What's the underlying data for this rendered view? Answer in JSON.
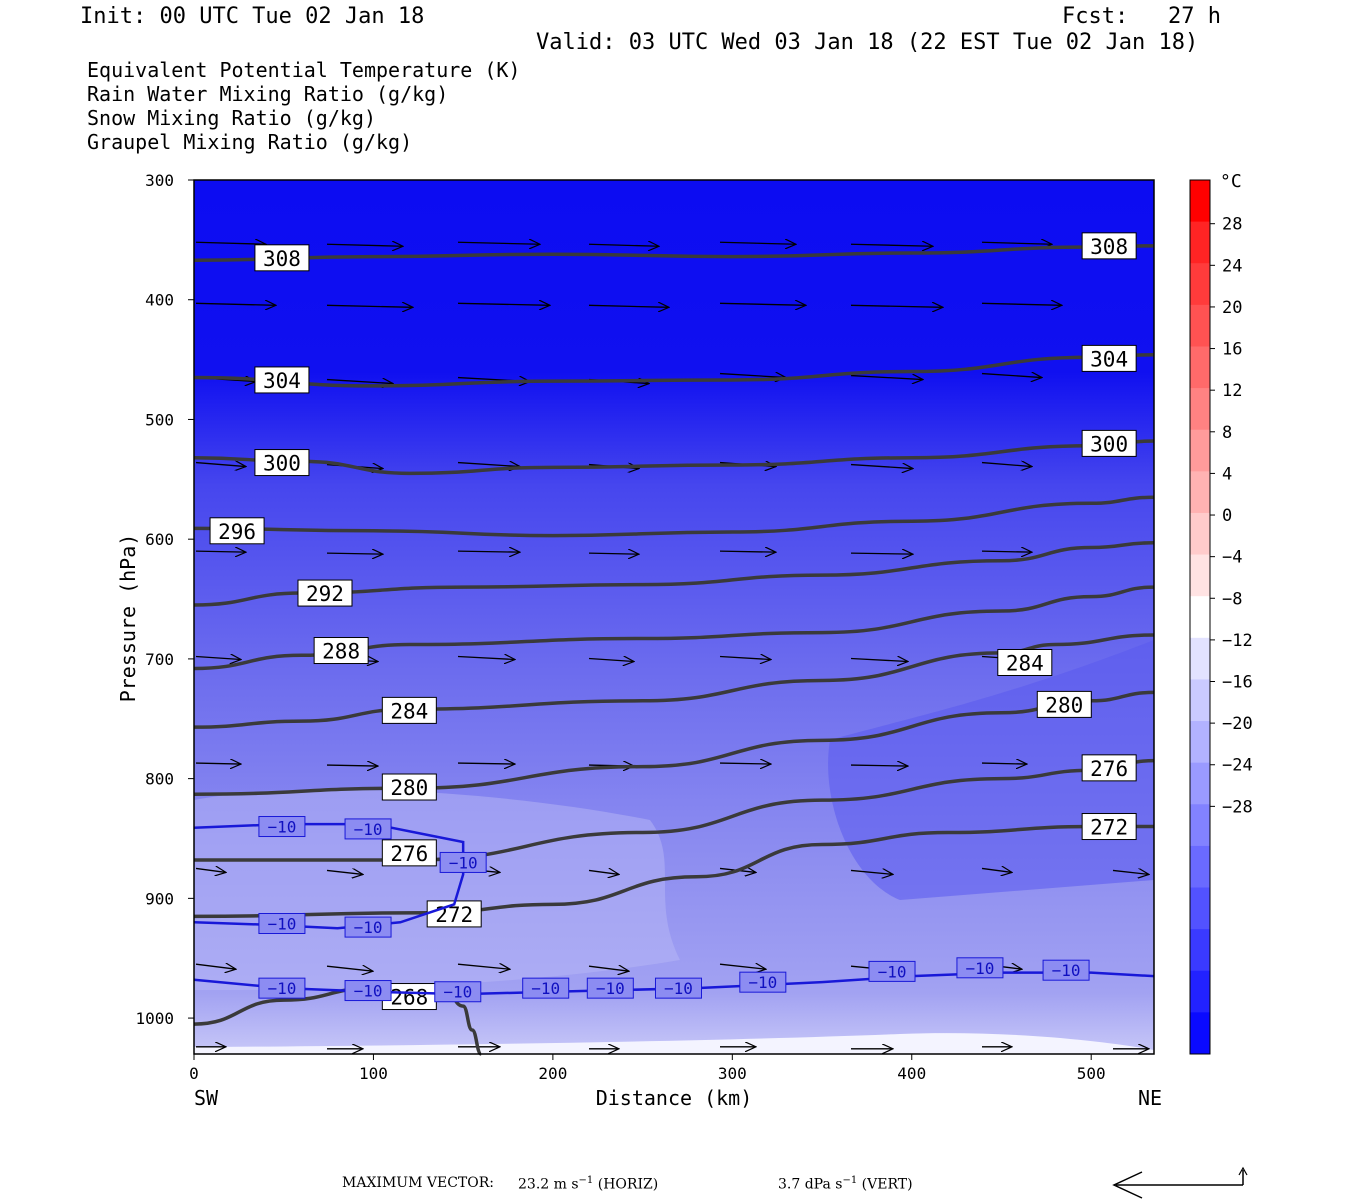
{
  "header": {
    "init": "Init: 00 UTC Tue 02 Jan 18",
    "fcst": "Fcst:   27 h",
    "valid": "Valid: 03 UTC Wed 03 Jan 18 (22 EST Tue 02 Jan 18)"
  },
  "legend": [
    {
      "label": "Equivalent Potential Temperature (K)",
      "color": "#444444"
    },
    {
      "label": "Rain Water Mixing Ratio (g/kg)",
      "color": "#1a7a1a"
    },
    {
      "label": "Snow Mixing Ratio (g/kg)",
      "color": "#f08a4b"
    },
    {
      "label": "Graupel Mixing Ratio (g/kg)",
      "color": "#e87ae8"
    }
  ],
  "chart_data": {
    "type": "cross-section",
    "xlabel": "Distance (km)",
    "ylabel": "Pressure (hPa)",
    "xlim": [
      0,
      535
    ],
    "ylim": [
      1030,
      300
    ],
    "x_ticks": [
      "0",
      "100",
      "200",
      "300",
      "400",
      "500"
    ],
    "y_ticks": [
      "300",
      "400",
      "500",
      "600",
      "700",
      "800",
      "900",
      "1000"
    ],
    "x_end_labels": {
      "left": "SW",
      "right": "NE"
    },
    "colorbar": {
      "unit": "°C",
      "ticks": [
        "28",
        "24",
        "20",
        "16",
        "12",
        "8",
        "4",
        "0",
        "−4",
        "−8",
        "−12",
        "−16",
        "−20",
        "−24",
        "−28"
      ],
      "colors": [
        "#ff0000",
        "#ff2424",
        "#ff3b3b",
        "#ff5252",
        "#ff6a6a",
        "#ff8282",
        "#ff9b9b",
        "#ffb2b2",
        "#ffcbcb",
        "#ffe3e3",
        "#ffffff",
        "#e2e2ff",
        "#cacaff",
        "#b2b2ff",
        "#9a9aff",
        "#8282ff",
        "#6a6aff",
        "#5252ff",
        "#3a3aff",
        "#2222ff",
        "#0a0aff"
      ]
    },
    "theta_e_contours": [
      {
        "level": "308",
        "points": [
          [
            0,
            367
          ],
          [
            100,
            364
          ],
          [
            200,
            362
          ],
          [
            300,
            364
          ],
          [
            400,
            361
          ],
          [
            500,
            356
          ],
          [
            535,
            355
          ]
        ],
        "labels": [
          [
            49,
            365
          ],
          [
            510,
            355
          ]
        ]
      },
      {
        "level": "304",
        "points": [
          [
            0,
            465
          ],
          [
            100,
            472
          ],
          [
            200,
            468
          ],
          [
            300,
            467
          ],
          [
            400,
            460
          ],
          [
            500,
            448
          ],
          [
            535,
            446
          ]
        ],
        "labels": [
          [
            49,
            467
          ],
          [
            510,
            449
          ]
        ]
      },
      {
        "level": "300",
        "points": [
          [
            0,
            532
          ],
          [
            60,
            535
          ],
          [
            120,
            545
          ],
          [
            200,
            540
          ],
          [
            300,
            538
          ],
          [
            400,
            532
          ],
          [
            500,
            522
          ],
          [
            535,
            518
          ]
        ],
        "labels": [
          [
            49,
            536
          ],
          [
            510,
            520
          ]
        ]
      },
      {
        "level": "296",
        "points": [
          [
            0,
            591
          ],
          [
            100,
            593
          ],
          [
            200,
            597
          ],
          [
            300,
            594
          ],
          [
            400,
            585
          ],
          [
            500,
            570
          ],
          [
            535,
            565
          ]
        ],
        "labels": [
          [
            24,
            593
          ]
        ]
      },
      {
        "level": "292",
        "points": [
          [
            0,
            655
          ],
          [
            60,
            645
          ],
          [
            150,
            640
          ],
          [
            250,
            638
          ],
          [
            350,
            630
          ],
          [
            450,
            618
          ],
          [
            500,
            607
          ],
          [
            535,
            603
          ]
        ],
        "labels": [
          [
            73,
            645
          ]
        ]
      },
      {
        "level": "288",
        "points": [
          [
            0,
            708
          ],
          [
            60,
            697
          ],
          [
            120,
            688
          ],
          [
            250,
            683
          ],
          [
            350,
            678
          ],
          [
            450,
            660
          ],
          [
            500,
            648
          ],
          [
            535,
            640
          ]
        ],
        "labels": [
          [
            82,
            693
          ]
        ]
      },
      {
        "level": "284",
        "points": [
          [
            0,
            757
          ],
          [
            60,
            752
          ],
          [
            120,
            742
          ],
          [
            250,
            735
          ],
          [
            350,
            718
          ],
          [
            450,
            695
          ],
          [
            480,
            688
          ],
          [
            535,
            680
          ]
        ],
        "labels": [
          [
            120,
            743
          ],
          [
            463,
            703
          ]
        ]
      },
      {
        "level": "280",
        "points": [
          [
            0,
            813
          ],
          [
            120,
            808
          ],
          [
            250,
            790
          ],
          [
            350,
            768
          ],
          [
            450,
            745
          ],
          [
            500,
            735
          ],
          [
            535,
            728
          ]
        ],
        "labels": [
          [
            120,
            807
          ],
          [
            485,
            738
          ]
        ]
      },
      {
        "level": "276",
        "points": [
          [
            0,
            868
          ],
          [
            120,
            868
          ],
          [
            250,
            845
          ],
          [
            350,
            818
          ],
          [
            450,
            800
          ],
          [
            500,
            793
          ],
          [
            535,
            785
          ]
        ],
        "labels": [
          [
            120,
            862
          ],
          [
            510,
            791
          ]
        ]
      },
      {
        "level": "272",
        "points": [
          [
            0,
            915
          ],
          [
            130,
            912
          ],
          [
            200,
            905
          ],
          [
            280,
            882
          ],
          [
            350,
            855
          ],
          [
            420,
            845
          ],
          [
            500,
            840
          ],
          [
            535,
            840
          ]
        ],
        "labels": [
          [
            145,
            913
          ],
          [
            510,
            840
          ]
        ]
      },
      {
        "level": "268",
        "points": [
          [
            0,
            1005
          ],
          [
            50,
            985
          ],
          [
            100,
            975
          ],
          [
            140,
            977
          ],
          [
            150,
            990
          ],
          [
            155,
            1010
          ],
          [
            160,
            1030
          ]
        ],
        "labels": [
          [
            120,
            982
          ]
        ]
      }
    ],
    "temp_contours": [
      {
        "level": "−10",
        "points": [
          [
            0,
            841
          ],
          [
            50,
            838
          ],
          [
            100,
            838
          ],
          [
            130,
            847
          ],
          [
            150,
            853
          ],
          [
            150,
            880
          ],
          [
            145,
            905
          ],
          [
            115,
            920
          ],
          [
            80,
            925
          ],
          [
            40,
            922
          ],
          [
            0,
            920
          ]
        ],
        "labels": [
          [
            49,
            840
          ],
          [
            97,
            842
          ],
          [
            150,
            870
          ],
          [
            49,
            921
          ],
          [
            97,
            924
          ]
        ]
      },
      {
        "level": "−10",
        "points": [
          [
            0,
            968
          ],
          [
            50,
            975
          ],
          [
            100,
            978
          ],
          [
            150,
            980
          ],
          [
            200,
            978
          ],
          [
            280,
            975
          ],
          [
            350,
            970
          ],
          [
            400,
            965
          ],
          [
            450,
            962
          ],
          [
            500,
            962
          ],
          [
            535,
            965
          ]
        ],
        "labels": [
          [
            49,
            975
          ],
          [
            97,
            977
          ],
          [
            147,
            978
          ],
          [
            196,
            975
          ],
          [
            232,
            975
          ],
          [
            270,
            975
          ],
          [
            317,
            970
          ],
          [
            389,
            961
          ],
          [
            438,
            958
          ],
          [
            486,
            960
          ]
        ]
      }
    ],
    "wind_vector_scale": {
      "horiz": "23.2 m s",
      "vert": "3.7 dPa s",
      "units_exp": "−1",
      "horiz_tag": "(HORIZ)",
      "vert_tag": "(VERT)",
      "label": "MAXIMUM VECTOR:"
    }
  }
}
